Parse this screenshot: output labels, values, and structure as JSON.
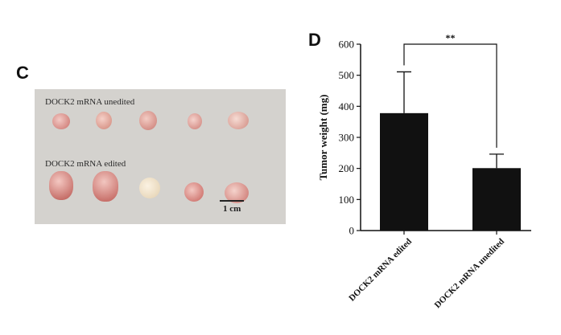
{
  "panel_c": {
    "letter": "C",
    "row_labels": [
      "DOCK2 mRNA unedited",
      "DOCK2 mRNA edited"
    ],
    "scale_bar_label": "1 cm"
  },
  "panel_d": {
    "letter": "D"
  },
  "chart_data": {
    "type": "bar",
    "categories": [
      "DOCK2 mRNA edited",
      "DOCK2 mRNA unedited"
    ],
    "values": [
      378,
      201
    ],
    "error": [
      133,
      45
    ],
    "ylabel": "Tumor weight (mg)",
    "xlabel": "",
    "ylim": [
      0,
      600
    ],
    "yticks": [
      0,
      100,
      200,
      300,
      400,
      500,
      600
    ],
    "significance": "**",
    "bar_color": "#111111"
  }
}
